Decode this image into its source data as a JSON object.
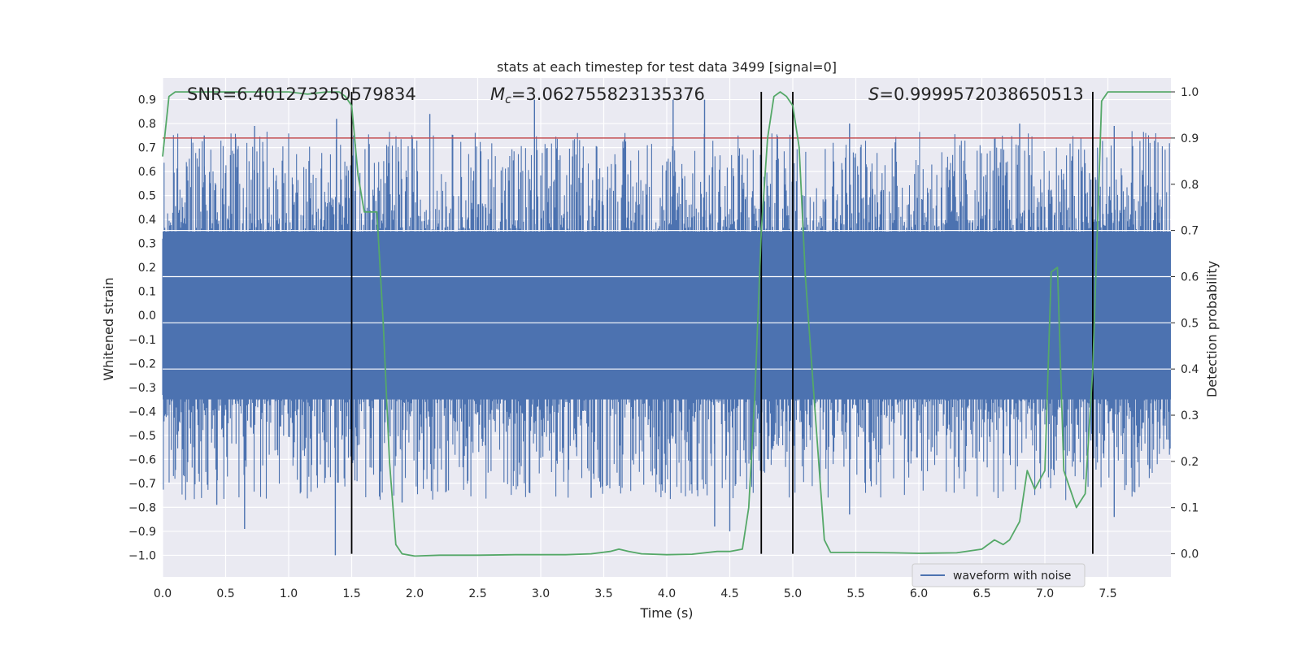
{
  "chart_data": {
    "type": "line",
    "title": "stats at each timestep for test data 3499 [signal=0]",
    "xlabel": "Time (s)",
    "ylabel": "Whitened strain",
    "ylabel_right": "Detection probability",
    "xlim": [
      0.0,
      8.0
    ],
    "ylim": [
      -1.09,
      0.99
    ],
    "ylim_right": [
      -0.05,
      1.03
    ],
    "x_ticks": [
      "0.0",
      "0.5",
      "1.0",
      "1.5",
      "2.0",
      "2.5",
      "3.0",
      "3.5",
      "4.0",
      "4.5",
      "5.0",
      "5.5",
      "6.0",
      "6.5",
      "7.0",
      "7.5"
    ],
    "x_tick_values": [
      0.0,
      0.5,
      1.0,
      1.5,
      2.0,
      2.5,
      3.0,
      3.5,
      4.0,
      4.5,
      5.0,
      5.5,
      6.0,
      6.5,
      7.0,
      7.5
    ],
    "y_ticks": [
      "0.9",
      "0.8",
      "0.7",
      "0.6",
      "0.5",
      "0.4",
      "0.3",
      "0.2",
      "0.1",
      "0.0",
      "−0.1",
      "−0.2",
      "−0.3",
      "−0.4",
      "−0.5",
      "−0.6",
      "−0.7",
      "−0.8",
      "−0.9",
      "−1.0"
    ],
    "y_tick_values": [
      0.9,
      0.8,
      0.7,
      0.6,
      0.5,
      0.4,
      0.3,
      0.2,
      0.1,
      0.0,
      -0.1,
      -0.2,
      -0.3,
      -0.4,
      -0.5,
      -0.6,
      -0.7,
      -0.8,
      -0.9,
      -1.0
    ],
    "y_ticks_right": [
      "1.0",
      "0.9",
      "0.8",
      "0.7",
      "0.6",
      "0.5",
      "0.4",
      "0.3",
      "0.2",
      "0.1",
      "0.0"
    ],
    "y_tick_values_right": [
      1.0,
      0.9,
      0.8,
      0.7,
      0.6,
      0.5,
      0.4,
      0.3,
      0.2,
      0.1,
      0.0
    ],
    "annotations": {
      "snr": "SNR=6.401273250579834",
      "mc_symbol": "M",
      "mc_sub": "c",
      "mc_value": "=3.062755823135376",
      "s_symbol": "S",
      "s_value": "=0.9999572038650513"
    },
    "legend": [
      {
        "label": "waveform with noise",
        "color": "#4c72b0"
      }
    ],
    "threshold_line": {
      "y_right": 0.9,
      "color": "#c44e52"
    },
    "vertical_lines": [
      1.5,
      4.75,
      5.0,
      7.38
    ],
    "waveform": {
      "name": "waveform with noise",
      "color": "#4c72b0",
      "x_range": [
        0.0,
        8.0
      ],
      "core_band": [
        -0.35,
        0.35
      ],
      "peak_samples": [
        {
          "x": 0.33,
          "y": 0.75
        },
        {
          "x": 0.58,
          "y": 0.74
        },
        {
          "x": 0.73,
          "y": 0.79
        },
        {
          "x": 1.38,
          "y": 0.82
        },
        {
          "x": 2.12,
          "y": 0.84
        },
        {
          "x": 2.95,
          "y": 0.9
        },
        {
          "x": 4.05,
          "y": 0.9
        },
        {
          "x": 4.3,
          "y": 0.9
        },
        {
          "x": 5.45,
          "y": 0.8
        },
        {
          "x": 6.8,
          "y": 0.8
        },
        {
          "x": 7.55,
          "y": 0.79
        },
        {
          "x": 0.65,
          "y": -0.89
        },
        {
          "x": 1.37,
          "y": -1.0
        },
        {
          "x": 4.38,
          "y": -0.88
        },
        {
          "x": 4.5,
          "y": -0.9
        },
        {
          "x": 5.45,
          "y": -0.83
        },
        {
          "x": 7.55,
          "y": -0.84
        },
        {
          "x": 0.43,
          "y": -0.79
        },
        {
          "x": 1.9,
          "y": -0.78
        },
        {
          "x": 3.4,
          "y": -0.76
        }
      ]
    },
    "detection_probability": {
      "name": "Detection probability",
      "color": "#55a868",
      "x": [
        0.0,
        0.05,
        0.1,
        0.2,
        0.4,
        0.6,
        0.8,
        1.0,
        1.15,
        1.3,
        1.4,
        1.45,
        1.5,
        1.55,
        1.6,
        1.65,
        1.7,
        1.75,
        1.8,
        1.85,
        1.9,
        2.0,
        2.2,
        2.5,
        2.8,
        3.0,
        3.2,
        3.4,
        3.55,
        3.62,
        3.7,
        3.8,
        4.0,
        4.2,
        4.4,
        4.5,
        4.6,
        4.65,
        4.7,
        4.75,
        4.8,
        4.85,
        4.9,
        4.95,
        5.0,
        5.05,
        5.1,
        5.2,
        5.25,
        5.3,
        5.5,
        5.8,
        6.0,
        6.3,
        6.5,
        6.6,
        6.67,
        6.72,
        6.8,
        6.86,
        6.92,
        7.0,
        7.05,
        7.1,
        7.15,
        7.25,
        7.32,
        7.38,
        7.45,
        7.5,
        7.6,
        7.8,
        8.0
      ],
      "y": [
        0.86,
        0.99,
        1.0,
        1.0,
        1.0,
        1.0,
        1.0,
        1.0,
        0.995,
        1.0,
        1.0,
        0.99,
        0.97,
        0.82,
        0.74,
        0.74,
        0.74,
        0.5,
        0.2,
        0.02,
        0.0,
        -0.005,
        -0.003,
        -0.003,
        -0.002,
        -0.002,
        -0.002,
        0.0,
        0.005,
        0.01,
        0.005,
        0.0,
        -0.002,
        -0.001,
        0.005,
        0.005,
        0.01,
        0.1,
        0.35,
        0.7,
        0.9,
        0.99,
        1.0,
        0.99,
        0.97,
        0.88,
        0.6,
        0.22,
        0.03,
        0.003,
        0.003,
        0.002,
        0.001,
        0.002,
        0.01,
        0.03,
        0.02,
        0.03,
        0.07,
        0.18,
        0.14,
        0.18,
        0.61,
        0.62,
        0.18,
        0.1,
        0.13,
        0.4,
        0.98,
        1.0,
        1.0,
        1.0,
        1.0
      ]
    }
  }
}
